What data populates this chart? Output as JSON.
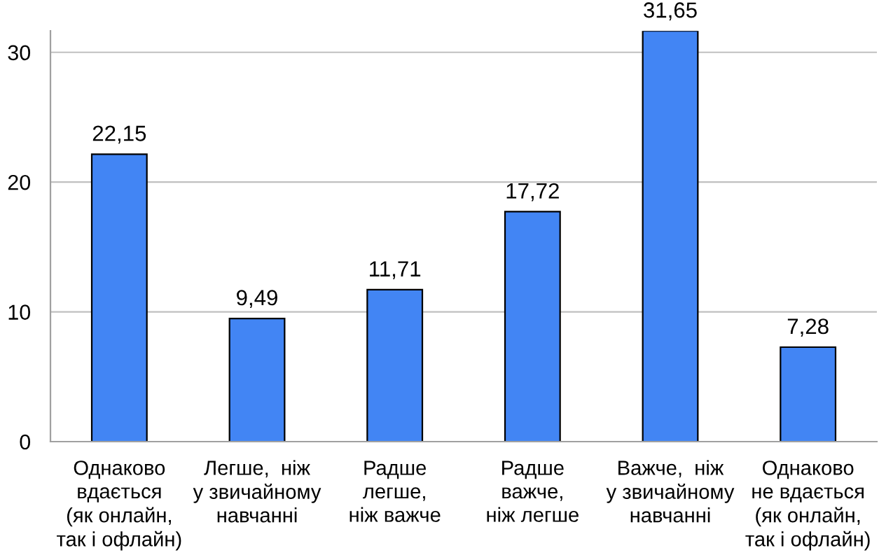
{
  "chart_data": {
    "type": "bar",
    "categories": [
      "Однаково\nвдається\n(як онлайн,\nтак і офлайн)",
      "Легше,  ніж\nу звичайному\nнавчанні",
      "Радше\nлегше,\nніж важче",
      "Радше\nважче,\nніж легше",
      "Важче,  ніж\nу звичайному\nнавчанні",
      "Однаково\nне вдається\n(як онлайн,\nтак і офлайн)"
    ],
    "values": [
      22.15,
      9.49,
      11.71,
      17.72,
      31.65,
      7.28
    ],
    "value_labels": [
      "22,15",
      "9,49",
      "11,71",
      "17,72",
      "31,65",
      "7,28"
    ],
    "color": "#4285f4",
    "ylim": [
      0,
      31.65
    ],
    "yticks": [
      0,
      10,
      20,
      30
    ],
    "grid": "y"
  }
}
